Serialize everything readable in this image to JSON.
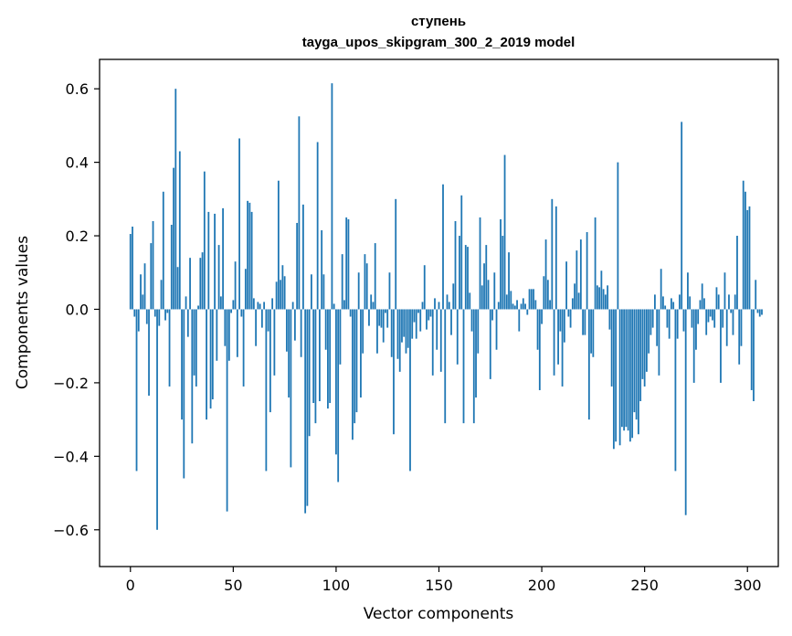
{
  "chart_data": {
    "type": "bar",
    "title": "ступень",
    "subtitle": "tayga_upos_skipgram_300_2_2019 model",
    "xlabel": "Vector components",
    "ylabel": "Components values",
    "xlim": [
      -15,
      315
    ],
    "ylim": [
      -0.7,
      0.68
    ],
    "xticks": [
      0,
      50,
      100,
      150,
      200,
      250,
      300
    ],
    "yticks": [
      -0.6,
      -0.4,
      -0.2,
      0.0,
      0.2,
      0.4,
      0.6
    ],
    "ytick_labels": [
      "−0.6",
      "−0.4",
      "−0.2",
      "0.0",
      "0.2",
      "0.4",
      "0.6"
    ],
    "xtick_labels": [
      "0",
      "50",
      "100",
      "150",
      "200",
      "250",
      "300"
    ],
    "bar_color": "#1f77b4",
    "values": [
      0.205,
      0.225,
      -0.02,
      -0.44,
      -0.06,
      0.095,
      0.04,
      0.125,
      -0.04,
      -0.235,
      0.18,
      0.24,
      -0.02,
      -0.6,
      -0.045,
      0.08,
      0.32,
      -0.03,
      -0.01,
      -0.21,
      0.23,
      0.385,
      0.6,
      0.115,
      0.43,
      -0.3,
      -0.46,
      0.035,
      -0.075,
      0.14,
      -0.365,
      -0.18,
      -0.21,
      0.01,
      0.14,
      0.155,
      0.375,
      -0.3,
      0.265,
      -0.27,
      -0.245,
      0.26,
      -0.14,
      0.175,
      0.035,
      0.275,
      -0.1,
      -0.55,
      -0.14,
      -0.01,
      0.025,
      0.13,
      -0.13,
      0.465,
      -0.02,
      -0.21,
      0.11,
      0.295,
      0.29,
      0.265,
      0.03,
      -0.1,
      0.02,
      0.015,
      -0.05,
      0.02,
      -0.44,
      -0.06,
      -0.28,
      0.03,
      -0.18,
      0.075,
      0.35,
      0.08,
      0.12,
      0.09,
      -0.115,
      -0.24,
      -0.43,
      0.02,
      -0.085,
      0.235,
      0.525,
      -0.13,
      0.285,
      -0.555,
      -0.535,
      -0.345,
      0.095,
      -0.255,
      -0.31,
      0.455,
      -0.25,
      0.215,
      0.095,
      -0.11,
      -0.27,
      -0.255,
      0.615,
      0.015,
      -0.395,
      -0.47,
      -0.15,
      0.15,
      0.025,
      0.25,
      0.245,
      -0.02,
      -0.355,
      -0.31,
      -0.28,
      0.1,
      -0.24,
      -0.12,
      0.15,
      0.125,
      -0.045,
      0.04,
      0.02,
      0.18,
      -0.12,
      -0.045,
      -0.05,
      -0.09,
      -0.01,
      -0.05,
      0.1,
      -0.13,
      -0.34,
      0.3,
      -0.135,
      -0.17,
      -0.09,
      -0.075,
      -0.12,
      -0.105,
      -0.44,
      -0.08,
      -0.035,
      -0.08,
      -0.01,
      -0.06,
      0.02,
      0.12,
      -0.055,
      -0.03,
      -0.02,
      -0.18,
      0.03,
      -0.11,
      0.02,
      -0.17,
      0.34,
      -0.31,
      0.04,
      0.02,
      -0.07,
      0.07,
      0.24,
      -0.15,
      0.2,
      0.31,
      -0.31,
      0.175,
      0.17,
      0.045,
      -0.06,
      -0.31,
      -0.24,
      -0.12,
      0.25,
      0.065,
      0.125,
      0.175,
      0.08,
      -0.19,
      -0.03,
      0.1,
      -0.11,
      0.02,
      0.245,
      0.2,
      0.42,
      0.04,
      0.155,
      0.05,
      0.015,
      0.01,
      0.025,
      -0.06,
      0.015,
      0.03,
      0.015,
      -0.015,
      0.055,
      0.055,
      0.055,
      0.025,
      -0.11,
      -0.22,
      -0.04,
      0.09,
      0.19,
      0.08,
      0.025,
      0.3,
      -0.18,
      0.28,
      -0.15,
      -0.06,
      -0.21,
      -0.09,
      0.13,
      -0.02,
      -0.05,
      0.03,
      0.07,
      0.16,
      0.045,
      0.19,
      -0.07,
      -0.07,
      0.21,
      -0.3,
      -0.12,
      -0.13,
      0.25,
      0.065,
      0.06,
      0.105,
      0.055,
      0.04,
      0.065,
      -0.055,
      -0.21,
      -0.38,
      -0.36,
      0.4,
      -0.37,
      -0.32,
      -0.33,
      -0.32,
      -0.33,
      -0.36,
      -0.35,
      -0.28,
      -0.3,
      -0.34,
      -0.25,
      -0.19,
      -0.21,
      -0.17,
      -0.12,
      -0.07,
      -0.05,
      0.04,
      -0.1,
      -0.18,
      0.11,
      0.035,
      0.01,
      -0.05,
      -0.08,
      0.03,
      0.02,
      -0.44,
      -0.08,
      0.04,
      0.51,
      -0.06,
      -0.56,
      0.1,
      0.035,
      -0.05,
      -0.2,
      -0.11,
      -0.04,
      0.025,
      0.07,
      0.03,
      -0.07,
      -0.035,
      -0.02,
      -0.03,
      -0.05,
      0.06,
      0.04,
      -0.2,
      -0.05,
      0.1,
      -0.1,
      0.04,
      -0.01,
      -0.07,
      0.04,
      0.2,
      -0.15,
      -0.1,
      0.35,
      0.32,
      0.27,
      0.28,
      -0.22,
      -0.25,
      0.08,
      -0.01,
      -0.02,
      -0.015
    ]
  }
}
